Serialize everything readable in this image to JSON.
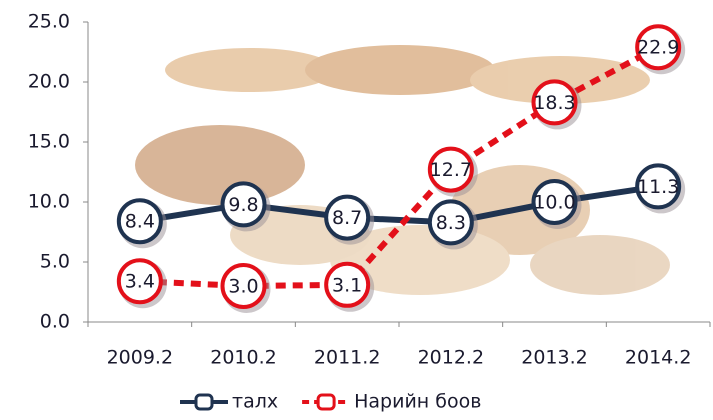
{
  "chart_data": {
    "type": "line",
    "categories": [
      "2009.2",
      "2010.2",
      "2011.2",
      "2012.2",
      "2013.2",
      "2014.2"
    ],
    "series": [
      {
        "name": "талх",
        "color": "#1f3350",
        "values": [
          8.4,
          9.8,
          8.7,
          8.3,
          10,
          11.3
        ],
        "value_labels": [
          "8.4",
          "9.8",
          "8.7",
          "8.3",
          "10.0",
          "11.3"
        ]
      },
      {
        "name": "Нарийн боов",
        "color": "#e3101a",
        "values": [
          3.4,
          3,
          3.1,
          12.7,
          18.3,
          22.9
        ],
        "value_labels": [
          "3.4",
          "3.0",
          "3.1",
          "12.7",
          "18.3",
          "22.9"
        ]
      }
    ],
    "ylim": [
      0,
      25
    ],
    "yticks": [
      {
        "value": 0,
        "label": "0.0"
      },
      {
        "value": 5,
        "label": "5.0"
      },
      {
        "value": 10,
        "label": "10.0"
      },
      {
        "value": 15,
        "label": "15.0"
      },
      {
        "value": 20,
        "label": "20.0"
      },
      {
        "value": 25,
        "label": "25.0"
      }
    ],
    "legend": "bottom"
  }
}
